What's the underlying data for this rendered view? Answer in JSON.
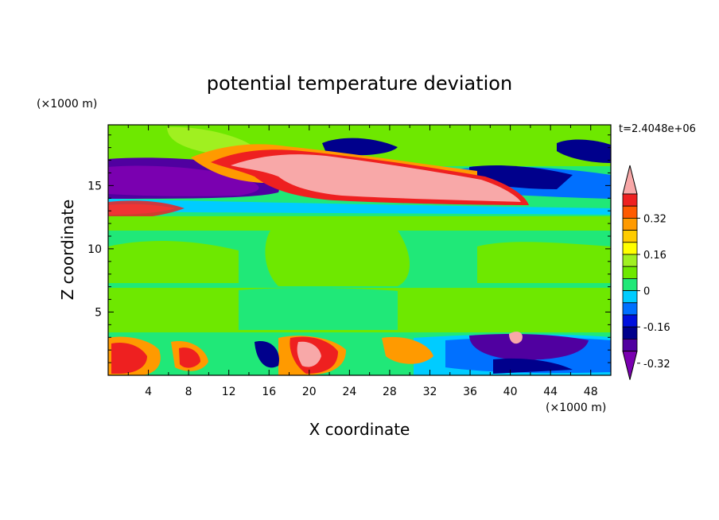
{
  "chart_data": {
    "type": "heatmap",
    "title": "potential temperature deviation",
    "xlabel": "X coordinate",
    "ylabel": "Z coordinate",
    "x_unit": "(×1000 m)",
    "y_unit": "(×1000 m)",
    "time_label": "t=2.4048e+06",
    "xlim": [
      0,
      50
    ],
    "ylim": [
      0,
      19.8
    ],
    "x_ticks": [
      "4",
      "8",
      "12",
      "16",
      "20",
      "24",
      "28",
      "32",
      "36",
      "40",
      "44",
      "48"
    ],
    "y_ticks": [
      "5",
      "10",
      "15"
    ],
    "colorbar": {
      "labels": [
        "0.32",
        "0.16",
        "0",
        "-0.16",
        "-0.32"
      ],
      "colors": [
        "#f8a8a8",
        "#ee2020",
        "#ff5a00",
        "#ff9a00",
        "#ffcc00",
        "#ffff00",
        "#a0f020",
        "#6ee800",
        "#20e878",
        "#00ccff",
        "#0070ff",
        "#0010dd",
        "#00008c",
        "#5000a0",
        "#7a00b0"
      ]
    },
    "colors": {
      "pink": "#f8a8a8",
      "red": "#ee2020",
      "orange_red": "#ff5a00",
      "orange": "#ff9a00",
      "gold": "#ffcc00",
      "yellow": "#ffff00",
      "lime": "#a0f020",
      "green": "#6ee800",
      "sea_green": "#20e878",
      "cyan": "#00ccff",
      "blue": "#0070ff",
      "dark_blue": "#0010dd",
      "navy": "#00008c",
      "purple": "#5000a0",
      "violet": "#7a00b0"
    }
  }
}
